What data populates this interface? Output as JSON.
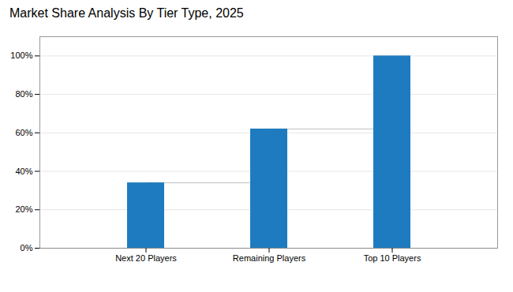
{
  "chart_data": {
    "type": "bar",
    "title": "Market Share Analysis By Tier Type, 2025",
    "categories": [
      "Next 20 Players",
      "Remaining Players",
      "Top 10 Players"
    ],
    "values": [
      0.34,
      0.62,
      1.0
    ],
    "color": "#1f7bbf",
    "ylim": [
      0,
      1.1
    ],
    "yticks": [
      {
        "value": 0.0,
        "label": "0%"
      },
      {
        "value": 0.2,
        "label": "20%"
      },
      {
        "value": 0.4,
        "label": "40%"
      },
      {
        "value": 0.6,
        "label": "60%"
      },
      {
        "value": 0.8,
        "label": "80%"
      },
      {
        "value": 1.0,
        "label": "100%"
      }
    ],
    "grid": true
  }
}
